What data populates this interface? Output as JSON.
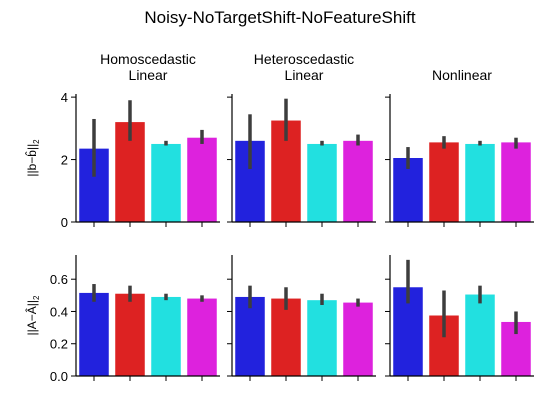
{
  "chart_data": {
    "type": "bar",
    "title": "Noisy-NoTargetShift-NoFeatureShift",
    "columns": [
      {
        "lines": [
          "Homoscedastic",
          "Linear"
        ]
      },
      {
        "lines": [
          "Heteroscedastic",
          "Linear"
        ]
      },
      {
        "lines": [
          "Nonlinear"
        ]
      }
    ],
    "colors": [
      "#2222dd",
      "#dd2222",
      "#22e0e0",
      "#dd22dd"
    ],
    "errorbar_color": "#3d3d3d",
    "rows": [
      {
        "ylabel": "||b−b̂||",
        "ylabel_sub": "2",
        "ylim": [
          0,
          4.1
        ],
        "yticks": [
          0,
          2,
          4
        ],
        "panels": [
          {
            "values": [
              2.35,
              3.2,
              2.5,
              2.7
            ],
            "err_low": [
              1.45,
              2.6,
              2.45,
              2.5
            ],
            "err_high": [
              3.3,
              3.9,
              2.6,
              2.95
            ]
          },
          {
            "values": [
              2.6,
              3.25,
              2.5,
              2.6
            ],
            "err_low": [
              1.7,
              2.6,
              2.45,
              2.45
            ],
            "err_high": [
              3.45,
              3.95,
              2.6,
              2.8
            ]
          },
          {
            "values": [
              2.05,
              2.55,
              2.5,
              2.55
            ],
            "err_low": [
              1.7,
              2.35,
              2.45,
              2.35
            ],
            "err_high": [
              2.4,
              2.75,
              2.6,
              2.7
            ]
          }
        ]
      },
      {
        "ylabel": "||A−Â||",
        "ylabel_sub": "2",
        "ylim": [
          0,
          0.75
        ],
        "yticks": [
          0.0,
          0.2,
          0.4,
          0.6
        ],
        "panels": [
          {
            "values": [
              0.515,
              0.51,
              0.49,
              0.48
            ],
            "err_low": [
              0.46,
              0.46,
              0.47,
              0.46
            ],
            "err_high": [
              0.57,
              0.56,
              0.51,
              0.5
            ]
          },
          {
            "values": [
              0.49,
              0.48,
              0.47,
              0.455
            ],
            "err_low": [
              0.42,
              0.41,
              0.44,
              0.43
            ],
            "err_high": [
              0.56,
              0.55,
              0.51,
              0.48
            ]
          },
          {
            "values": [
              0.55,
              0.375,
              0.505,
              0.335
            ],
            "err_low": [
              0.45,
              0.24,
              0.45,
              0.26
            ],
            "err_high": [
              0.72,
              0.53,
              0.56,
              0.4
            ]
          }
        ]
      }
    ],
    "grid": false,
    "legend": "none"
  }
}
